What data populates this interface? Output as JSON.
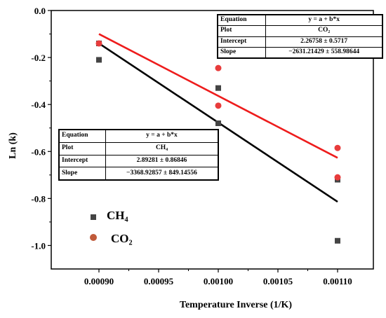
{
  "chart_data": {
    "type": "scatter",
    "xlabel": "Temperature Inverse (1/K)",
    "ylabel": "Ln (k)",
    "xlim": [
      0.00086,
      0.00113
    ],
    "ylim": [
      -1.1,
      0.0
    ],
    "x_ticks": [
      "0.00090",
      "0.00095",
      "0.00100",
      "0.00105",
      "0.00110"
    ],
    "y_ticks": [
      "0.0",
      "-0.2",
      "-0.4",
      "-0.6",
      "-0.8",
      "-1.0"
    ],
    "x_tick_values": [
      0.0009,
      0.00095,
      0.001,
      0.00105,
      0.0011
    ],
    "y_tick_values": [
      0.0,
      -0.2,
      -0.4,
      -0.6,
      -0.8,
      -1.0
    ],
    "series": [
      {
        "name": "CH₄",
        "marker": "square",
        "color": "#444444",
        "fit_color": "#000000",
        "x": [
          0.0009,
          0.0009,
          0.001,
          0.001,
          0.0011,
          0.0011
        ],
        "y": [
          -0.14,
          -0.21,
          -0.33,
          -0.48,
          -0.72,
          -0.98
        ],
        "fit_line": {
          "x": [
            0.0009,
            0.0011
          ],
          "y": [
            -0.14,
            -0.814
          ]
        }
      },
      {
        "name": "CO₂",
        "marker": "circle",
        "color": "#e83c3c",
        "fit_color": "#ee1c1c",
        "x": [
          0.0009,
          0.001,
          0.001,
          0.0011,
          0.0011
        ],
        "y": [
          -0.14,
          -0.245,
          -0.405,
          -0.585,
          -0.71
        ],
        "fit_line": {
          "x": [
            0.0009,
            0.0011
          ],
          "y": [
            -0.1,
            -0.627
          ]
        }
      }
    ],
    "fit_tables": {
      "co2": {
        "equation_label": "Equation",
        "equation": "y = a + b*x",
        "plot_label": "Plot",
        "plot": "CO₂",
        "intercept_label": "Intercept",
        "intercept": "2.26758 ± 0.5717",
        "slope_label": "Slope",
        "slope": "−2631.21429 ± 558.98644"
      },
      "ch4": {
        "equation_label": "Equation",
        "equation": "y = a + b*x",
        "plot_label": "Plot",
        "plot": "CH₄",
        "intercept_label": "Intercept",
        "intercept": "2.89281 ± 0.86846",
        "slope_label": "Slope",
        "slope": "−3368.92857 ± 849.14556"
      }
    },
    "legend": [
      {
        "label": "CH₄",
        "marker": "square",
        "color": "#444444"
      },
      {
        "label": "CO₂",
        "marker": "circle",
        "color": "#c05a3a"
      }
    ],
    "legend_position": "bottom-left",
    "grid": false
  }
}
